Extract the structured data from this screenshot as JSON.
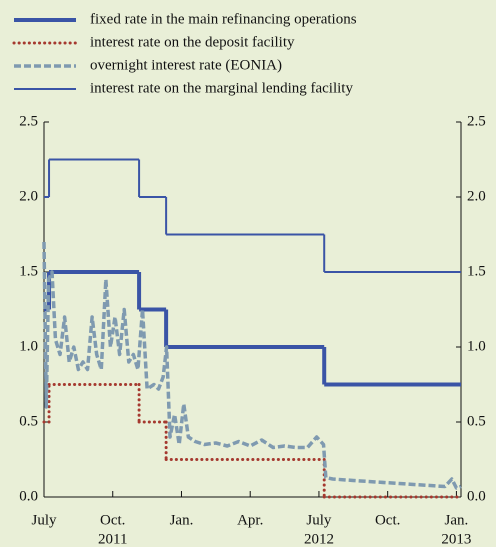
{
  "chart_data": {
    "type": "line",
    "step": true,
    "mirror_y": true,
    "xlim": [
      0,
      18.2
    ],
    "ylim": [
      0,
      2.5
    ],
    "yticks": [
      {
        "value": 0,
        "label": "0.0"
      },
      {
        "value": 0.5,
        "label": "0.5"
      },
      {
        "value": 1,
        "label": "1.0"
      },
      {
        "value": 1.5,
        "label": "1.5"
      },
      {
        "value": 2,
        "label": "2.0"
      },
      {
        "value": 2.5,
        "label": "2.5"
      }
    ],
    "xticks": [
      {
        "value": 0,
        "label": "July"
      },
      {
        "value": 3,
        "label": "Oct."
      },
      {
        "value": 6,
        "label": "Jan."
      },
      {
        "value": 9,
        "label": "Apr."
      },
      {
        "value": 12,
        "label": "July"
      },
      {
        "value": 15,
        "label": "Oct."
      },
      {
        "value": 18,
        "label": "Jan."
      }
    ],
    "year_labels": [
      {
        "value": 3,
        "label": "2011"
      },
      {
        "value": 12,
        "label": "2012"
      },
      {
        "value": 18,
        "label": "2013"
      }
    ],
    "series": [
      {
        "name": "fixed rate in the main refinancing operations",
        "color": "#3a54a6",
        "style": "thick",
        "step": true,
        "x": [
          0,
          0.22,
          4.15,
          5.33,
          12.23
        ],
        "values": [
          1.25,
          1.5,
          1.25,
          1.0,
          0.75
        ]
      },
      {
        "name": "interest rate on the deposit facility",
        "color": "#a5392f",
        "style": "dotted",
        "step": true,
        "x": [
          0,
          0.22,
          4.15,
          5.33,
          12.23
        ],
        "values": [
          0.5,
          0.75,
          0.5,
          0.25,
          0
        ]
      },
      {
        "name": "overnight interest rate (EONIA)",
        "color": "#7f9ab0",
        "style": "dashed",
        "step": false,
        "x": [
          0,
          0.1,
          0.2,
          0.35,
          0.5,
          0.7,
          0.9,
          1.1,
          1.3,
          1.5,
          1.7,
          1.9,
          2.1,
          2.3,
          2.5,
          2.7,
          2.9,
          3.1,
          3.3,
          3.5,
          3.7,
          3.9,
          4.1,
          4.3,
          4.5,
          4.8,
          5.0,
          5.2,
          5.35,
          5.5,
          5.7,
          5.9,
          6.1,
          6.3,
          6.6,
          7.0,
          7.5,
          8.0,
          8.5,
          9.0,
          9.5,
          10.0,
          10.5,
          11.0,
          11.5,
          11.9,
          12.2,
          12.3,
          12.6,
          13.5,
          14.5,
          15.5,
          16.5,
          17.5,
          17.8,
          18.0,
          18.2
        ],
        "values": [
          1.7,
          0.6,
          1.45,
          1.5,
          1.05,
          0.95,
          1.2,
          0.9,
          1.0,
          0.85,
          0.9,
          0.85,
          1.2,
          0.95,
          0.85,
          1.45,
          1.0,
          1.2,
          0.95,
          1.25,
          0.9,
          0.95,
          0.85,
          1.25,
          0.72,
          0.75,
          0.72,
          0.8,
          1.0,
          0.4,
          0.55,
          0.35,
          0.62,
          0.4,
          0.37,
          0.35,
          0.36,
          0.34,
          0.37,
          0.34,
          0.38,
          0.33,
          0.34,
          0.33,
          0.33,
          0.4,
          0.35,
          0.13,
          0.12,
          0.11,
          0.1,
          0.09,
          0.08,
          0.07,
          0.12,
          0.06,
          0.07
        ]
      },
      {
        "name": "interest rate on the marginal lending facility",
        "color": "#3a54a6",
        "style": "thin",
        "step": true,
        "x": [
          0,
          0.22,
          4.15,
          5.33,
          12.23
        ],
        "values": [
          2.0,
          2.25,
          2.0,
          1.75,
          1.5
        ]
      }
    ]
  }
}
